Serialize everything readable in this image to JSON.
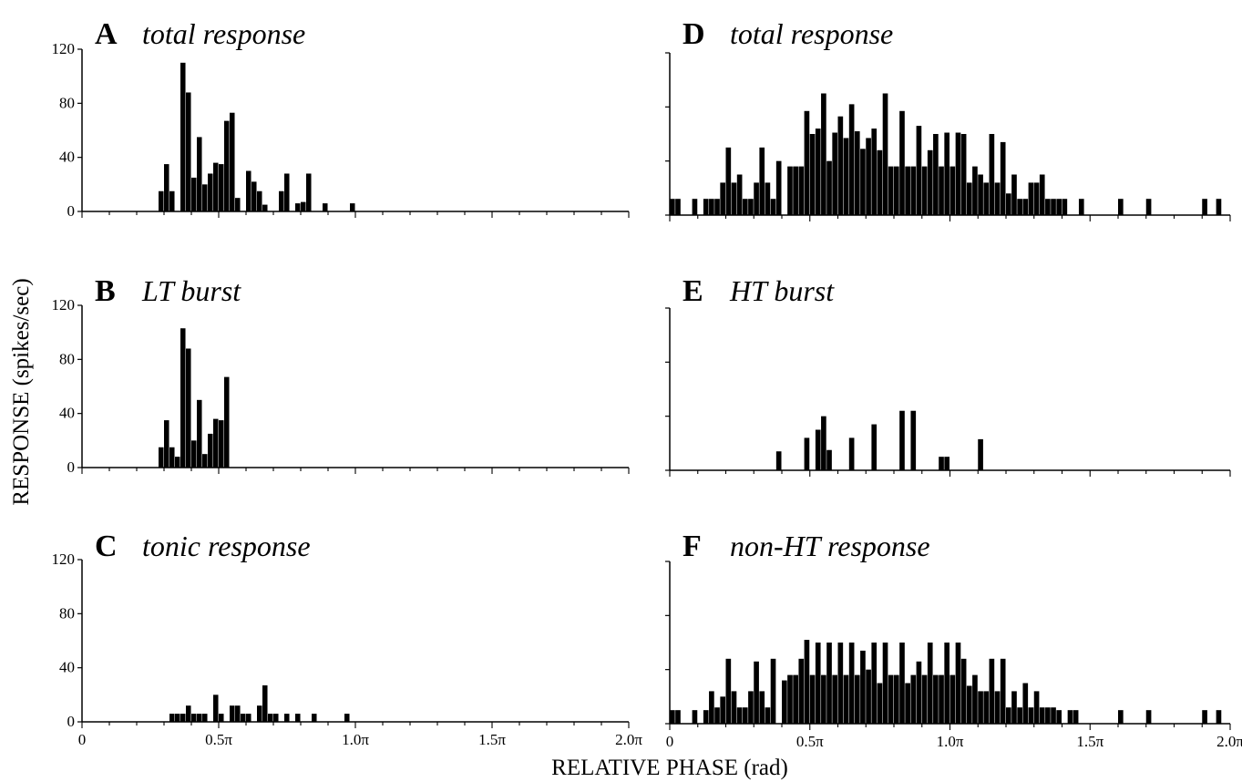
{
  "figure": {
    "ylabel": "RESPONSE (spikes/sec)",
    "xlabel": "RELATIVE PHASE (rad)"
  },
  "chart_data": [
    {
      "id": "A",
      "type": "bar",
      "letter": "A",
      "title": "total response",
      "ylim": [
        0,
        120
      ],
      "yticks": [
        "0",
        "40",
        "80",
        "120"
      ],
      "xlim": [
        0,
        2
      ],
      "xticks": [],
      "bin_width": 0.02,
      "x": [
        0.26,
        0.28,
        0.3,
        0.32,
        0.34,
        0.36,
        0.38,
        0.4,
        0.42,
        0.44,
        0.46,
        0.48,
        0.5,
        0.52,
        0.54,
        0.56,
        0.58,
        0.6,
        0.62,
        0.64,
        0.66,
        0.68,
        0.7,
        0.72,
        0.74,
        0.76,
        0.78,
        0.8,
        0.82,
        0.84,
        0.86,
        0.88,
        0.9,
        0.92,
        0.94,
        0.96,
        0.98
      ],
      "values": [
        0,
        15,
        35,
        15,
        0,
        110,
        88,
        25,
        55,
        20,
        28,
        36,
        35,
        67,
        73,
        10,
        0,
        30,
        22,
        15,
        5,
        0,
        0,
        15,
        28,
        0,
        6,
        7,
        28,
        0,
        0,
        6,
        0,
        0,
        0,
        0,
        6
      ]
    },
    {
      "id": "B",
      "type": "bar",
      "letter": "B",
      "title": "LT burst",
      "ylim": [
        0,
        120
      ],
      "yticks": [
        "0",
        "40",
        "80",
        "120"
      ],
      "xlim": [
        0,
        2
      ],
      "xticks": [],
      "bin_width": 0.02,
      "x": [
        0.26,
        0.28,
        0.3,
        0.32,
        0.34,
        0.36,
        0.38,
        0.4,
        0.42,
        0.44,
        0.46,
        0.48,
        0.5,
        0.52
      ],
      "values": [
        0,
        15,
        35,
        15,
        8,
        103,
        88,
        20,
        50,
        10,
        25,
        36,
        35,
        67
      ]
    },
    {
      "id": "C",
      "type": "bar",
      "letter": "C",
      "title": "tonic response",
      "ylim": [
        0,
        120
      ],
      "yticks": [
        "0",
        "40",
        "80",
        "120"
      ],
      "xlim": [
        0,
        2
      ],
      "xticks": [
        "0",
        "0.5π",
        "1.0π",
        "1.5π",
        "2.0π"
      ],
      "bin_width": 0.02,
      "x": [
        0.32,
        0.34,
        0.36,
        0.38,
        0.4,
        0.42,
        0.44,
        0.46,
        0.48,
        0.5,
        0.52,
        0.54,
        0.56,
        0.58,
        0.6,
        0.62,
        0.64,
        0.66,
        0.68,
        0.7,
        0.72,
        0.74,
        0.76,
        0.78,
        0.8,
        0.82,
        0.84,
        0.86,
        0.88,
        0.9,
        0.92,
        0.94,
        0.96
      ],
      "values": [
        6,
        6,
        6,
        12,
        6,
        6,
        6,
        0,
        20,
        6,
        0,
        12,
        12,
        6,
        6,
        0,
        12,
        27,
        6,
        6,
        0,
        6,
        0,
        6,
        0,
        0,
        6,
        0,
        0,
        0,
        0,
        0,
        6
      ]
    },
    {
      "id": "D",
      "type": "bar",
      "letter": "D",
      "title": "total response",
      "ylim": [
        0,
        120
      ],
      "yticks": [],
      "xlim": [
        0,
        2
      ],
      "xticks": [],
      "bin_width": 0.02,
      "x": [
        0.0,
        0.02,
        0.04,
        0.06,
        0.08,
        0.1,
        0.12,
        0.14,
        0.16,
        0.18,
        0.2,
        0.22,
        0.24,
        0.26,
        0.28,
        0.3,
        0.32,
        0.34,
        0.36,
        0.38,
        0.4,
        0.42,
        0.44,
        0.46,
        0.48,
        0.5,
        0.52,
        0.54,
        0.56,
        0.58,
        0.6,
        0.62,
        0.64,
        0.66,
        0.68,
        0.7,
        0.72,
        0.74,
        0.76,
        0.78,
        0.8,
        0.82,
        0.84,
        0.86,
        0.88,
        0.9,
        0.92,
        0.94,
        0.96,
        0.98,
        1.0,
        1.02,
        1.04,
        1.06,
        1.08,
        1.1,
        1.12,
        1.14,
        1.16,
        1.18,
        1.2,
        1.22,
        1.24,
        1.26,
        1.28,
        1.3,
        1.32,
        1.34,
        1.36,
        1.38,
        1.4,
        1.42,
        1.44,
        1.46,
        1.48,
        1.5,
        1.52,
        1.54,
        1.56,
        1.58,
        1.6,
        1.62,
        1.64,
        1.66,
        1.68,
        1.7,
        1.72,
        1.74,
        1.76,
        1.78,
        1.8,
        1.82,
        1.84,
        1.86,
        1.88,
        1.9,
        1.92,
        1.94,
        1.96
      ],
      "values": [
        12,
        12,
        0,
        0,
        12,
        0,
        12,
        12,
        12,
        24,
        50,
        24,
        30,
        12,
        12,
        24,
        50,
        24,
        12,
        40,
        0,
        36,
        36,
        36,
        77,
        60,
        64,
        90,
        40,
        61,
        73,
        57,
        82,
        62,
        49,
        57,
        64,
        48,
        90,
        36,
        36,
        77,
        36,
        36,
        66,
        36,
        48,
        60,
        36,
        61,
        36,
        61,
        60,
        24,
        36,
        30,
        24,
        60,
        24,
        54,
        16,
        30,
        12,
        12,
        24,
        24,
        30,
        12,
        12,
        0,
        12,
        0,
        0,
        0,
        0,
        0,
        0,
        0,
        0,
        0,
        0,
        0,
        0,
        0,
        0,
        0,
        0,
        0,
        0,
        0,
        0,
        0,
        0,
        0,
        0,
        0,
        0,
        0,
        0
      ],
      "extra_bars": [
        [
          1.6,
          12
        ],
        [
          1.7,
          12
        ],
        [
          1.9,
          12
        ],
        [
          1.95,
          12
        ],
        [
          1.38,
          12
        ],
        [
          1.46,
          12
        ]
      ]
    },
    {
      "id": "E",
      "type": "bar",
      "letter": "E",
      "title": "HT burst",
      "ylim": [
        0,
        120
      ],
      "yticks": [],
      "xlim": [
        0,
        2
      ],
      "xticks": [],
      "bin_width": 0.02,
      "x": [
        0.38,
        0.48,
        0.52,
        0.54,
        0.56,
        0.64,
        0.72,
        0.82,
        0.86,
        0.96,
        0.98,
        1.1
      ],
      "values": [
        14,
        24,
        30,
        40,
        15,
        24,
        34,
        44,
        44,
        10,
        10,
        23
      ]
    },
    {
      "id": "F",
      "type": "bar",
      "letter": "F",
      "title": "non-HT response",
      "ylim": [
        0,
        120
      ],
      "yticks": [],
      "xlim": [
        0,
        2
      ],
      "xticks": [
        "0",
        "0.5π",
        "1.0π",
        "1.5π",
        "2.0π"
      ],
      "bin_width": 0.02,
      "x": [
        0.0,
        0.02,
        0.04,
        0.06,
        0.08,
        0.1,
        0.12,
        0.14,
        0.16,
        0.18,
        0.2,
        0.22,
        0.24,
        0.26,
        0.28,
        0.3,
        0.32,
        0.34,
        0.36,
        0.38,
        0.4,
        0.42,
        0.44,
        0.46,
        0.48,
        0.5,
        0.52,
        0.54,
        0.56,
        0.58,
        0.6,
        0.62,
        0.64,
        0.66,
        0.68,
        0.7,
        0.72,
        0.74,
        0.76,
        0.78,
        0.8,
        0.82,
        0.84,
        0.86,
        0.88,
        0.9,
        0.92,
        0.94,
        0.96,
        0.98,
        1.0,
        1.02,
        1.04,
        1.06,
        1.08,
        1.1,
        1.12,
        1.14,
        1.16,
        1.18,
        1.2,
        1.22,
        1.24,
        1.26,
        1.28,
        1.3,
        1.32,
        1.34,
        1.36,
        1.38,
        1.4,
        1.42,
        1.44,
        1.46
      ],
      "values": [
        10,
        10,
        0,
        0,
        10,
        0,
        10,
        24,
        12,
        20,
        48,
        24,
        12,
        12,
        24,
        46,
        24,
        12,
        48,
        0,
        32,
        36,
        36,
        48,
        62,
        36,
        60,
        36,
        60,
        36,
        60,
        36,
        60,
        36,
        54,
        40,
        60,
        30,
        60,
        36,
        36,
        60,
        30,
        36,
        46,
        36,
        60,
        36,
        36,
        60,
        36,
        60,
        48,
        28,
        36,
        24,
        24,
        48,
        24,
        48,
        12,
        24,
        12,
        30,
        12,
        24,
        12,
        12,
        12,
        10,
        0,
        10,
        10,
        0
      ],
      "extra_bars": [
        [
          1.6,
          10
        ],
        [
          1.7,
          10
        ],
        [
          1.9,
          10
        ],
        [
          1.95,
          10
        ]
      ]
    }
  ]
}
